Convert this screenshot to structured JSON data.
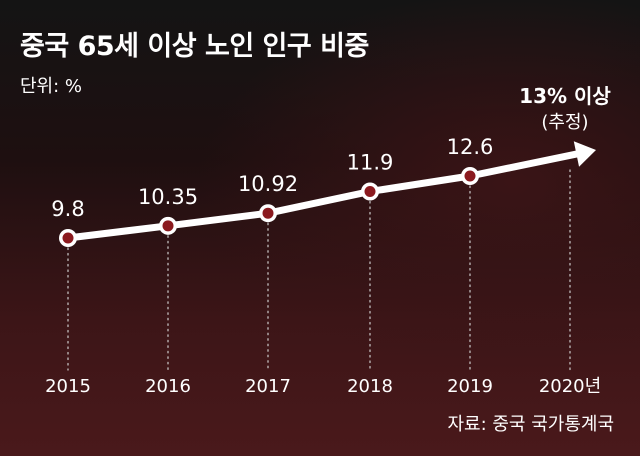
{
  "title": "중국 65세 이상 노인 인구 비중",
  "unit_label": "단위: %",
  "source": "자료: 중국 국가통계국",
  "annotation": {
    "main": "13% 이상",
    "sub": "(추정)"
  },
  "colors": {
    "line": "#ffffff",
    "marker_fill": "#8b1a1f",
    "grid": "#cfcfcf"
  },
  "chart_data": {
    "type": "line",
    "title": "중국 65세 이상 노인 인구 비중",
    "ylabel": "단위: %",
    "categories": [
      "2015",
      "2016",
      "2017",
      "2018",
      "2019",
      "2020년"
    ],
    "values": [
      9.8,
      10.35,
      10.92,
      11.9,
      12.6,
      13
    ],
    "value_labels": [
      "9.8",
      "10.35",
      "10.92",
      "11.9",
      "12.6",
      ""
    ],
    "grid": "vertical dotted",
    "ylim": [
      8.5,
      13.5
    ]
  }
}
